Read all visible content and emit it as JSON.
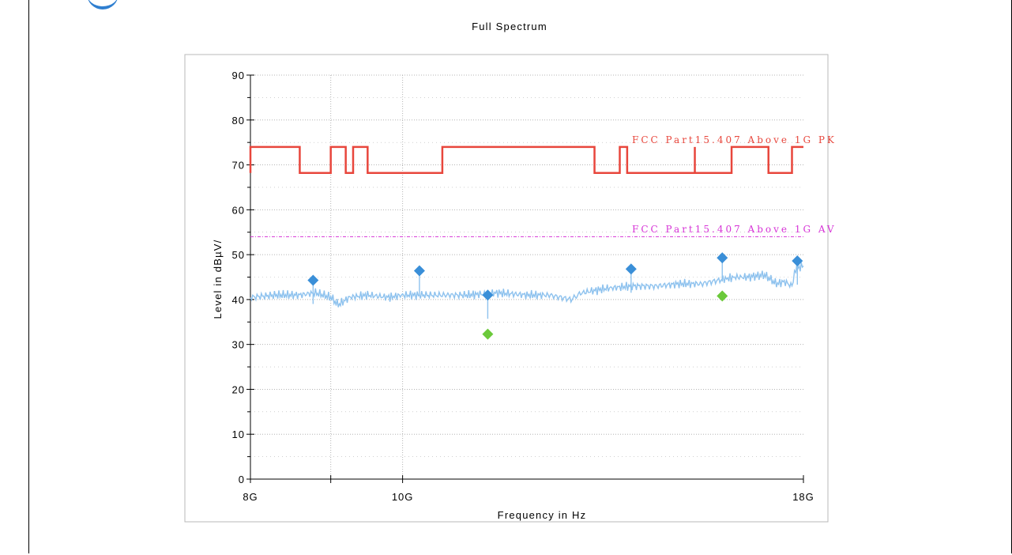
{
  "chart_data": {
    "type": "line",
    "title": "Full Spectrum",
    "xlabel": "Frequency in Hz",
    "ylabel": "Level in dBµV/",
    "x_scale": "log",
    "xlim": [
      8000000000,
      18000000000
    ],
    "ylim": [
      0,
      90
    ],
    "x_ticks": [
      {
        "value": 8000000000,
        "label": "8G"
      },
      {
        "value": 10000000000,
        "label": "10G"
      },
      {
        "value": 18000000000,
        "label": "18G"
      }
    ],
    "y_ticks": [
      {
        "value": 0,
        "label": "0"
      },
      {
        "value": 10,
        "label": "10"
      },
      {
        "value": 20,
        "label": "20"
      },
      {
        "value": 30,
        "label": "30"
      },
      {
        "value": 40,
        "label": "40"
      },
      {
        "value": 50,
        "label": "50"
      },
      {
        "value": 60,
        "label": "60"
      },
      {
        "value": 70,
        "label": "70"
      },
      {
        "value": 80,
        "label": "80"
      },
      {
        "value": 90,
        "label": "90"
      }
    ],
    "grid": true,
    "colors": {
      "limit_pk": "#e8463c",
      "limit_av": "#d633d6",
      "spectrum": "#8ec2ee",
      "peak_marker": "#3a8fd8",
      "avg_marker": "#6bc93a",
      "grid": "#b4b4b4",
      "plot_border": "#b8b8b8"
    },
    "limit_lines": [
      {
        "name": "FCC Part15.407 Above 1G PK",
        "points": [
          [
            8000000000,
            68.2
          ],
          [
            8000000000,
            74
          ],
          [
            8600000000,
            74
          ],
          [
            8600000000,
            68.2
          ],
          [
            9000000000,
            68.2
          ],
          [
            9000000000,
            74
          ],
          [
            9200000000,
            74
          ],
          [
            9200000000,
            68.2
          ],
          [
            9300000000,
            68.2
          ],
          [
            9300000000,
            74
          ],
          [
            9500000000,
            74
          ],
          [
            9500000000,
            68.2
          ],
          [
            10600000000,
            68.2
          ],
          [
            10600000000,
            74
          ],
          [
            13250000000,
            74
          ],
          [
            13250000000,
            68.2
          ],
          [
            13750000000,
            68.2
          ],
          [
            13750000000,
            74
          ],
          [
            13900000000,
            74
          ],
          [
            13900000000,
            68.2
          ],
          [
            15350000000,
            68.2
          ],
          [
            15350000000,
            74
          ],
          [
            15350000000,
            68.2
          ],
          [
            16200000000,
            68.2
          ],
          [
            16200000000,
            74
          ],
          [
            17100000000,
            74
          ],
          [
            17100000000,
            68.2
          ],
          [
            17700000000,
            68.2
          ],
          [
            17700000000,
            74
          ],
          [
            18000000000,
            74
          ]
        ]
      },
      {
        "name": "FCC Part15.407 Above 1G AV",
        "points": [
          [
            8000000000,
            54
          ],
          [
            18000000000,
            54
          ]
        ]
      }
    ],
    "series": [
      {
        "type": "line",
        "points": [
          [
            8000000000,
            40.5
          ],
          [
            8300000000,
            41
          ],
          [
            8600000000,
            41
          ],
          [
            8800000000,
            41.5
          ],
          [
            9000000000,
            40.5
          ],
          [
            9100000000,
            38.8
          ],
          [
            9250000000,
            40.5
          ],
          [
            9500000000,
            41
          ],
          [
            9800000000,
            40.5
          ],
          [
            10000000000,
            41
          ],
          [
            10250000000,
            41
          ],
          [
            10600000000,
            41
          ],
          [
            11000000000,
            41
          ],
          [
            11500000000,
            41.5
          ],
          [
            12000000000,
            41
          ],
          [
            12400000000,
            41
          ],
          [
            12800000000,
            40
          ],
          [
            13000000000,
            41.5
          ],
          [
            13500000000,
            42.5
          ],
          [
            14000000000,
            43
          ],
          [
            14500000000,
            43
          ],
          [
            15000000000,
            43.5
          ],
          [
            15500000000,
            43.5
          ],
          [
            16000000000,
            44.5
          ],
          [
            16300000000,
            45
          ],
          [
            16600000000,
            45
          ],
          [
            17000000000,
            45.5
          ],
          [
            17300000000,
            43.5
          ],
          [
            17500000000,
            44
          ],
          [
            17700000000,
            43
          ],
          [
            17800000000,
            47
          ],
          [
            18000000000,
            47.5
          ]
        ]
      },
      {
        "type": "scatter",
        "points": [
          [
            8770000000,
            44.3
          ],
          [
            10250000000,
            46.4
          ],
          [
            11330000000,
            41
          ],
          [
            13980000000,
            46.8
          ],
          [
            15980000000,
            49.3
          ],
          [
            17840000000,
            48.6
          ]
        ]
      },
      {
        "type": "scatter",
        "points": [
          [
            11330000000,
            32.3
          ],
          [
            15980000000,
            40.8
          ]
        ]
      }
    ]
  }
}
